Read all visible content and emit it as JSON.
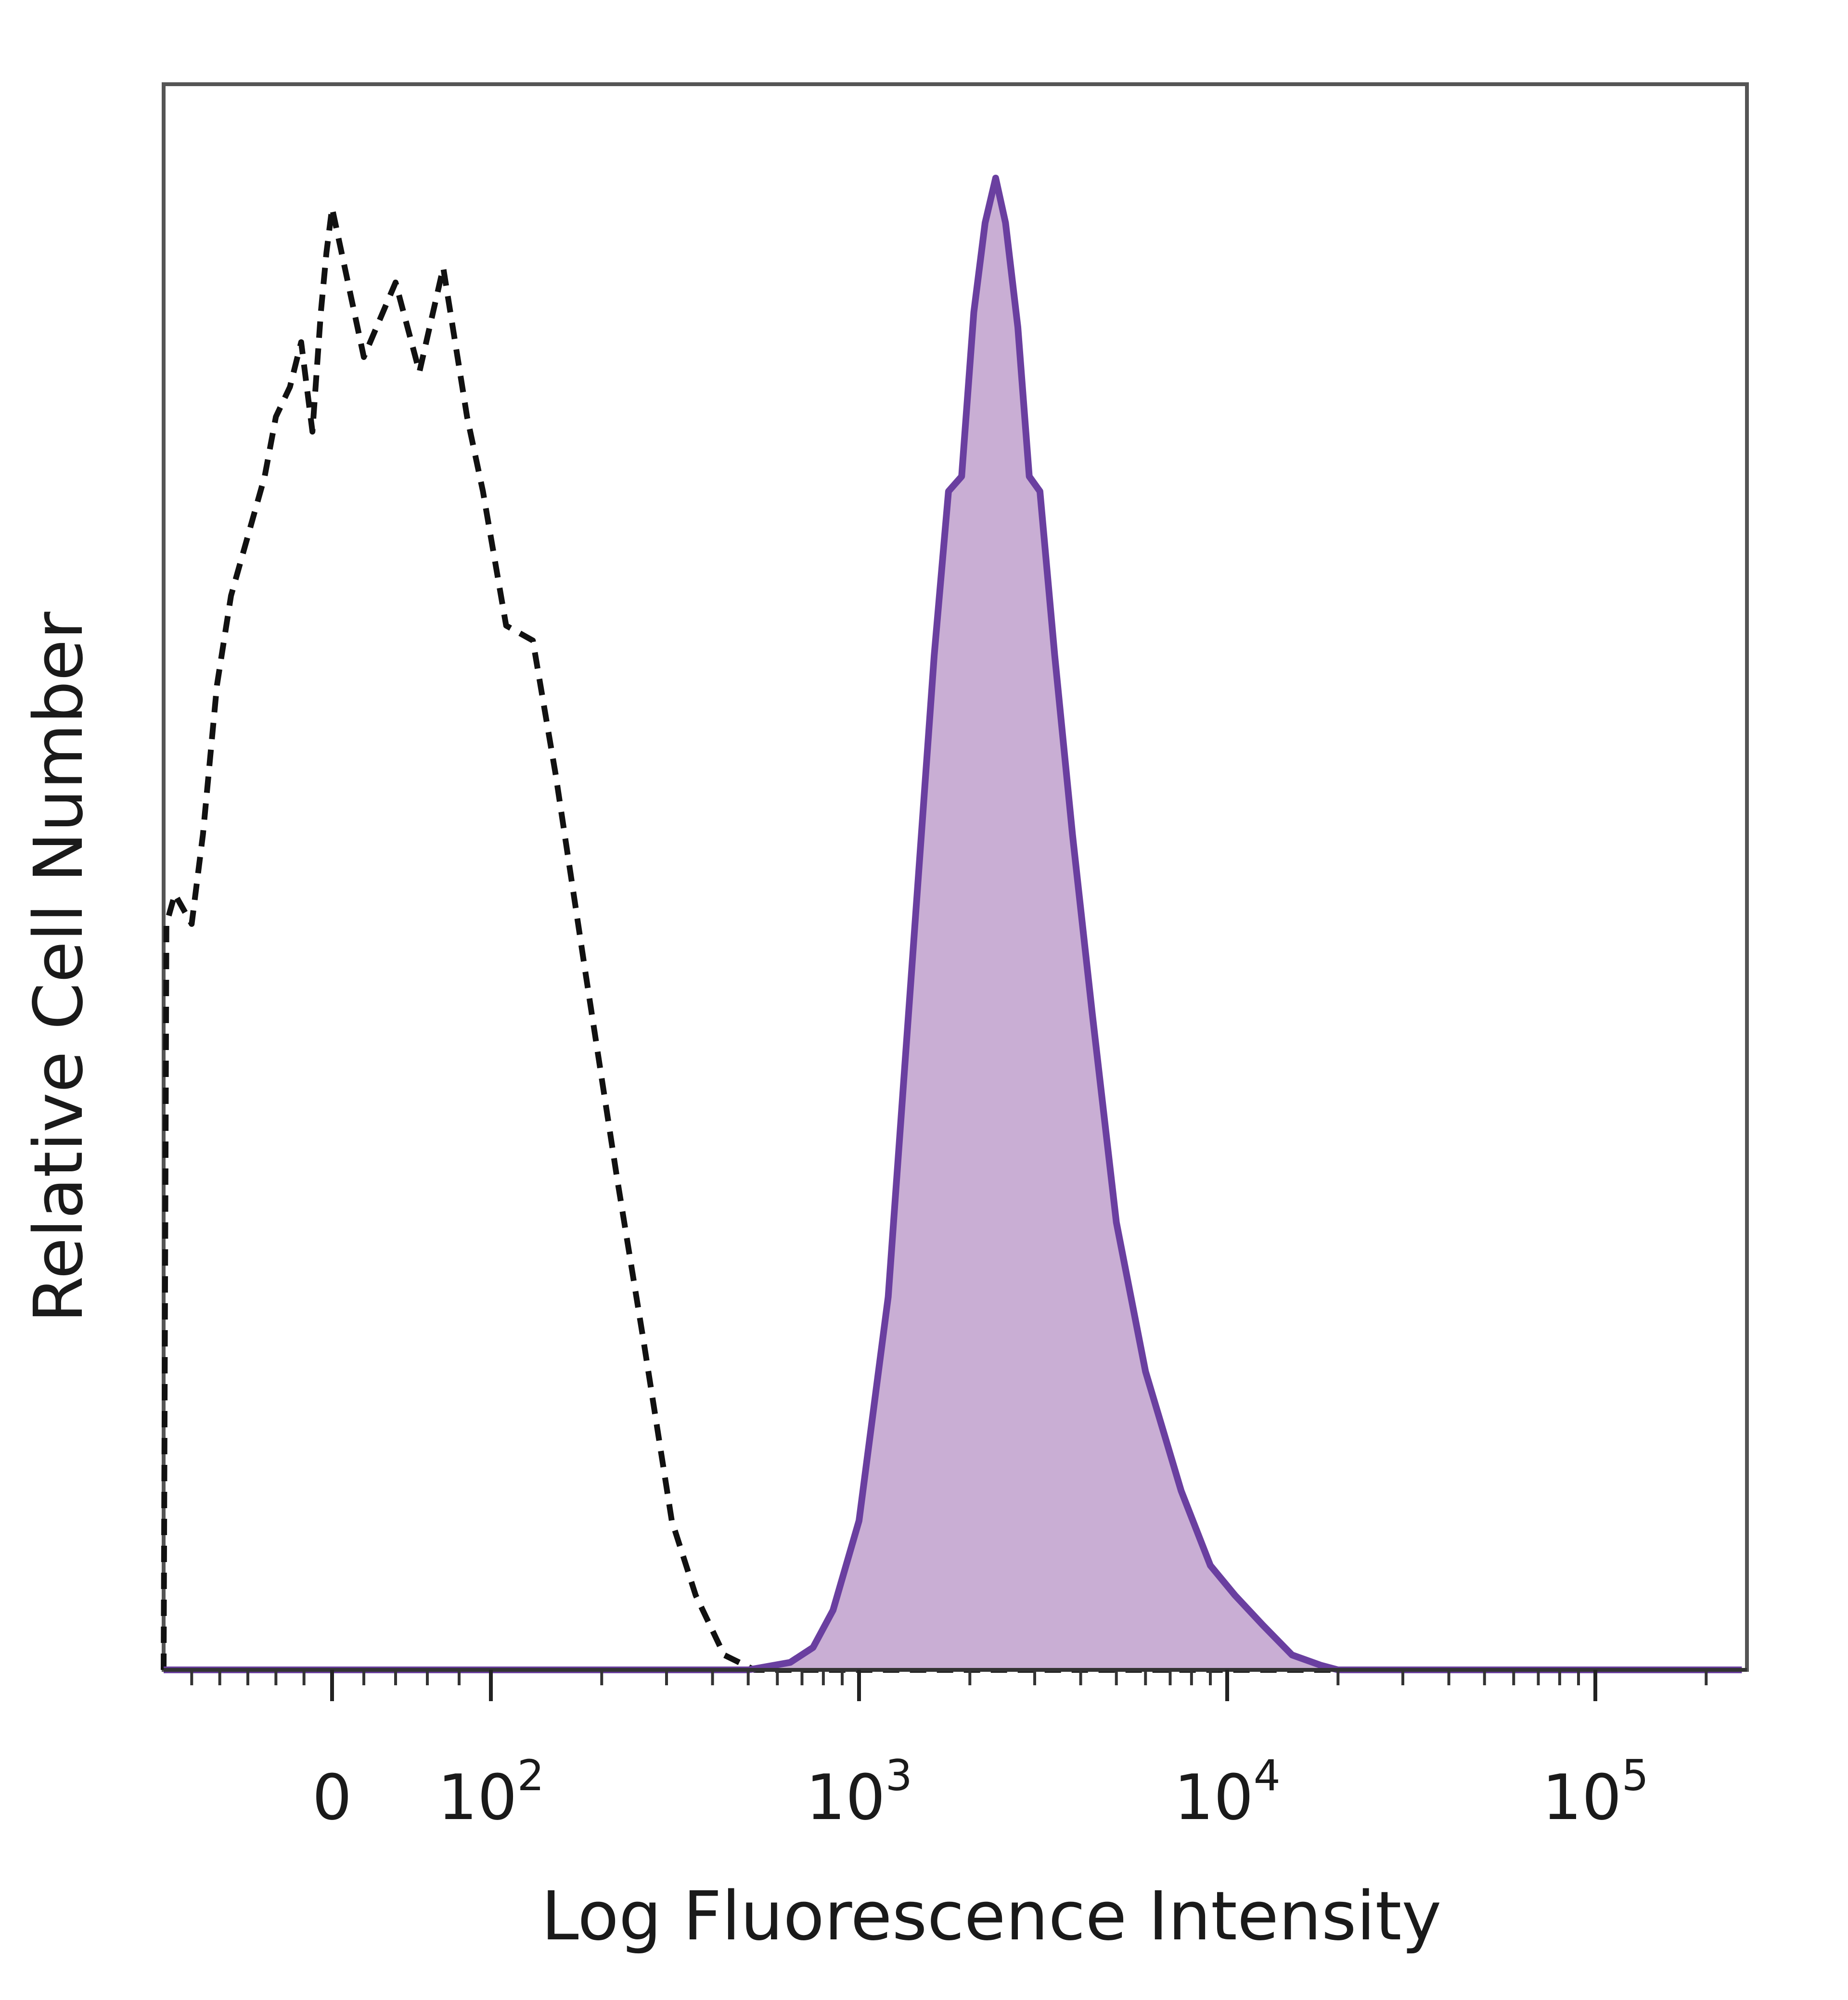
{
  "chart_data": {
    "type": "area",
    "xlabel": "Log Fluorescence Intensity",
    "ylabel": "Relative Cell Number",
    "x_scale": "biexponential",
    "xlim": [
      -600,
      250000
    ],
    "ylim": [
      0,
      100
    ],
    "x_ticks": [
      {
        "value": 0,
        "base": "0",
        "exp": ""
      },
      {
        "value": 100,
        "base": "10",
        "exp": "2"
      },
      {
        "value": 1000,
        "base": "10",
        "exp": "3"
      },
      {
        "value": 10000,
        "base": "10",
        "exp": "4"
      },
      {
        "value": 100000,
        "base": "10",
        "exp": "5"
      }
    ],
    "grid": false,
    "series": [
      {
        "style": "dashed",
        "color": "#111111",
        "filled": false,
        "points": [
          [
            -600,
            0
          ],
          [
            -590,
            50
          ],
          [
            -560,
            52
          ],
          [
            -500,
            50
          ],
          [
            -460,
            56
          ],
          [
            -410,
            66
          ],
          [
            -360,
            72
          ],
          [
            -300,
            76
          ],
          [
            -240,
            80
          ],
          [
            -200,
            84
          ],
          [
            -150,
            86
          ],
          [
            -110,
            89
          ],
          [
            -70,
            83
          ],
          [
            -40,
            91
          ],
          [
            -20,
            95
          ],
          [
            0,
            98
          ],
          [
            20,
            88
          ],
          [
            40,
            93
          ],
          [
            55,
            87
          ],
          [
            70,
            94
          ],
          [
            85,
            84
          ],
          [
            95,
            79
          ],
          [
            110,
            70
          ],
          [
            130,
            69
          ],
          [
            150,
            60
          ],
          [
            180,
            47
          ],
          [
            220,
            33
          ],
          [
            260,
            22
          ],
          [
            310,
            10
          ],
          [
            360,
            5
          ],
          [
            430,
            1
          ],
          [
            520,
            0
          ],
          [
            700,
            0
          ],
          [
            1000,
            0
          ],
          [
            3000,
            0
          ],
          [
            10000,
            0
          ],
          [
            30000,
            0
          ],
          [
            100000,
            0
          ],
          [
            250000,
            0
          ]
        ]
      },
      {
        "style": "solid",
        "color": "#6a3fa0",
        "fill": "#c9aed4",
        "filled": true,
        "points": [
          [
            -600,
            0
          ],
          [
            0,
            0
          ],
          [
            500,
            0
          ],
          [
            650,
            0.5
          ],
          [
            750,
            1.5
          ],
          [
            850,
            4
          ],
          [
            1000,
            10
          ],
          [
            1200,
            25
          ],
          [
            1400,
            48
          ],
          [
            1600,
            68
          ],
          [
            1750,
            79
          ],
          [
            1900,
            80
          ],
          [
            2050,
            91
          ],
          [
            2200,
            97
          ],
          [
            2350,
            100
          ],
          [
            2500,
            97
          ],
          [
            2700,
            90
          ],
          [
            2900,
            80
          ],
          [
            3100,
            79
          ],
          [
            3400,
            68
          ],
          [
            3800,
            56
          ],
          [
            4300,
            44
          ],
          [
            5000,
            30
          ],
          [
            6000,
            20
          ],
          [
            7500,
            12
          ],
          [
            9000,
            7
          ],
          [
            10500,
            5
          ],
          [
            12500,
            3
          ],
          [
            15000,
            1
          ],
          [
            18000,
            0.3
          ],
          [
            20000,
            0
          ],
          [
            250000,
            0
          ]
        ]
      }
    ]
  }
}
